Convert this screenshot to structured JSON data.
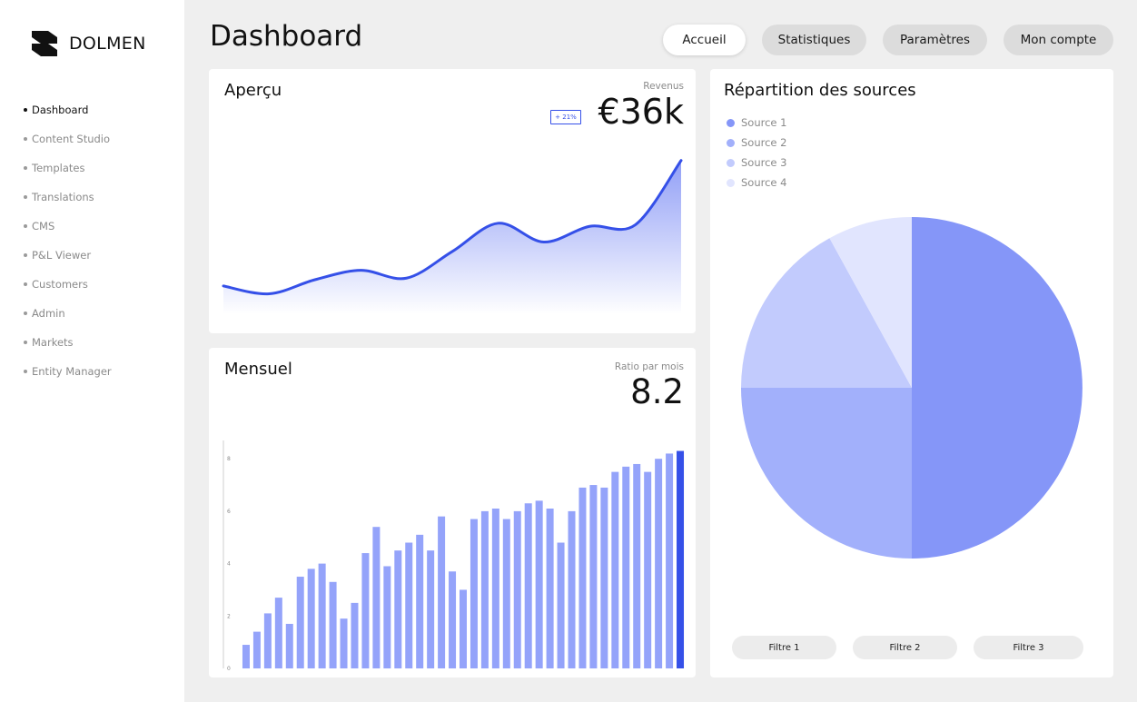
{
  "brand": {
    "name": "DOLMEN",
    "logo_icon": "dolmen-logo-icon"
  },
  "sidebar": {
    "items": [
      {
        "label": "Dashboard",
        "active": true
      },
      {
        "label": "Content Studio",
        "active": false
      },
      {
        "label": "Templates",
        "active": false
      },
      {
        "label": "Translations",
        "active": false
      },
      {
        "label": "CMS",
        "active": false
      },
      {
        "label": "P&L Viewer",
        "active": false
      },
      {
        "label": "Customers",
        "active": false
      },
      {
        "label": "Admin",
        "active": false
      },
      {
        "label": "Markets",
        "active": false
      },
      {
        "label": "Entity Manager",
        "active": false
      }
    ]
  },
  "header": {
    "title": "Dashboard",
    "nav": [
      {
        "label": "Accueil",
        "active": true
      },
      {
        "label": "Statistiques",
        "active": false
      },
      {
        "label": "Paramètres",
        "active": false
      },
      {
        "label": "Mon compte",
        "active": false
      }
    ]
  },
  "overview": {
    "title": "Aperçu",
    "kpi_label": "Revenus",
    "kpi_value": "€36k",
    "badge": "+ 21%"
  },
  "monthly": {
    "title": "Mensuel",
    "kpi_label": "Ratio par mois",
    "kpi_value": "8.2"
  },
  "sources": {
    "title": "Répartition des sources",
    "filters": [
      "Filtre 1",
      "Filtre 2",
      "Filtre 3"
    ]
  },
  "colors": {
    "accent": "#3550e8",
    "bar": "#94a3fa",
    "slice1": "#8596f8",
    "slice2": "#a2b0fb",
    "slice3": "#c2cbfd",
    "slice4": "#e1e5fe"
  },
  "chart_data": [
    {
      "type": "area",
      "title": "",
      "x": [
        0,
        1,
        2,
        3,
        4,
        5,
        6,
        7,
        8,
        9,
        10
      ],
      "values": [
        18,
        13,
        22,
        28,
        23,
        40,
        58,
        46,
        56,
        57,
        98
      ],
      "ylim": [
        0,
        110
      ],
      "grid": false,
      "axes_visible": false
    },
    {
      "type": "bar",
      "title": "",
      "y_ticks": [
        0,
        2,
        4,
        6,
        8
      ],
      "ylim": [
        0,
        8.7
      ],
      "values": [
        0.9,
        1.4,
        2.1,
        2.7,
        1.7,
        3.5,
        3.8,
        4.0,
        3.3,
        1.9,
        2.5,
        4.4,
        5.4,
        3.9,
        4.5,
        4.8,
        5.1,
        4.5,
        5.8,
        3.7,
        3.0,
        5.7,
        6.0,
        6.1,
        5.7,
        6.0,
        6.3,
        6.4,
        6.1,
        4.8,
        6.0,
        6.9,
        7.0,
        6.9,
        7.5,
        7.7,
        7.8,
        7.5,
        8.0,
        8.2,
        8.3
      ],
      "highlight_last": true,
      "grid": false
    },
    {
      "type": "pie",
      "title": "",
      "labels": [
        "Source 1",
        "Source 2",
        "Source 3",
        "Source 4"
      ],
      "values": [
        50,
        25,
        17,
        8
      ],
      "legend": "top-left"
    }
  ]
}
